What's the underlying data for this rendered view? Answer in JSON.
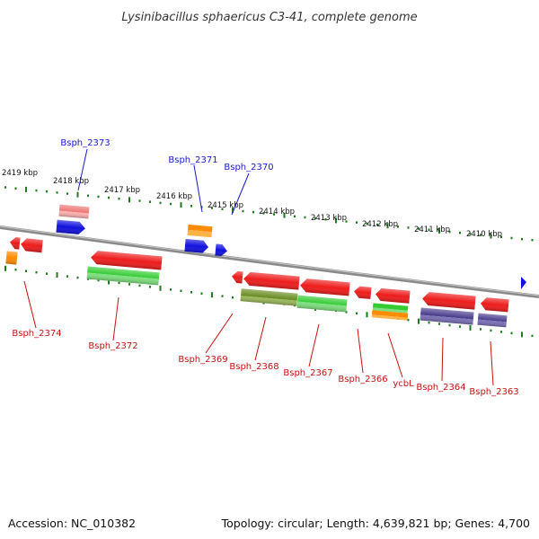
{
  "title": "Lysinibacillus sphaericus C3-41, complete genome",
  "footer": {
    "accession": "Accession: NC_010382",
    "topology": "Topology: circular; Length: 4,639,821 bp; Genes: 4,700"
  },
  "colors": {
    "backbone": "#8a8a8a",
    "tick": "#1f7a1f",
    "label_forward": "#1a1acc",
    "label_reverse": "#cc1111",
    "gene_red": "#ee1c1c",
    "gene_pink": "#ee7777",
    "gene_blue": "#1111dd",
    "gene_orange": "#ff8c00",
    "gene_green": "#33cc33",
    "gene_olive": "#6b8e23",
    "gene_purple": "#4b3f8f"
  },
  "ticks": [
    "2419 kbp",
    "2418 kbp",
    "2417 kbp",
    "2416 kbp",
    "2415 kbp",
    "2414 kbp",
    "2413 kbp",
    "2412 kbp",
    "2411 kbp",
    "2410 kbp"
  ],
  "labels_forward": [
    "Bsph_2373",
    "Bsph_2371",
    "Bsph_2370"
  ],
  "labels_reverse": [
    "Bsph_2374",
    "Bsph_2372",
    "Bsph_2369",
    "Bsph_2368",
    "Bsph_2367",
    "Bsph_2366",
    "ycbL",
    "Bsph_2364",
    "Bsph_2363"
  ]
}
